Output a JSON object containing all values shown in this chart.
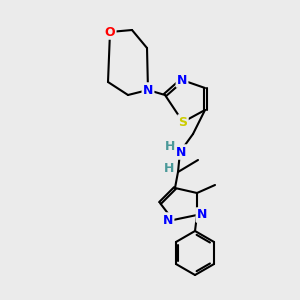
{
  "background_color": "#ebebeb",
  "bond_color": "#000000",
  "atom_colors": {
    "N": "#0000ff",
    "O": "#ff0000",
    "S": "#cccc00",
    "H": "#4a9999",
    "C": "#000000"
  },
  "figsize": [
    3.0,
    3.0
  ],
  "dpi": 100
}
